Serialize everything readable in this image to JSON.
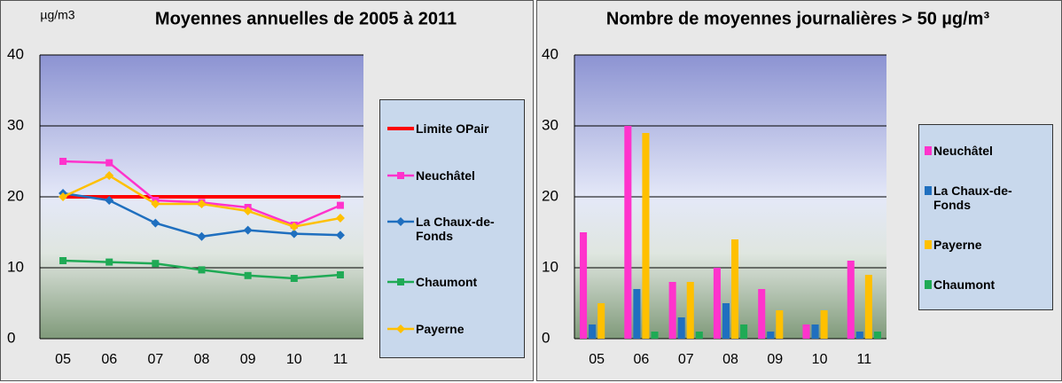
{
  "chart_data": [
    {
      "type": "line",
      "title": "Moyennes annuelles de 2005 à 2011",
      "y_label": "µg/m3",
      "categories": [
        "05",
        "06",
        "07",
        "08",
        "09",
        "10",
        "11"
      ],
      "ylim": [
        0,
        40
      ],
      "yticks": [
        0,
        10,
        20,
        30,
        40
      ],
      "grid": true,
      "series": [
        {
          "name": "Limite OPair",
          "color": "#ff0000",
          "marker": "none",
          "values": [
            20,
            20,
            20,
            20,
            20,
            20,
            20
          ]
        },
        {
          "name": "Neuchâtel",
          "color": "#ff33cc",
          "marker": "square",
          "values": [
            25,
            24.8,
            19.5,
            19.2,
            18.5,
            16,
            18.8
          ]
        },
        {
          "name": "La Chaux-de-Fonds",
          "color": "#1f6fbf",
          "marker": "diamond",
          "values": [
            20.5,
            19.5,
            16.3,
            14.4,
            15.3,
            14.8,
            14.6
          ]
        },
        {
          "name": "Chaumont",
          "color": "#1faa55",
          "marker": "square",
          "values": [
            11,
            10.8,
            10.6,
            9.7,
            8.9,
            8.5,
            9
          ]
        },
        {
          "name": "Payerne",
          "color": "#ffc000",
          "marker": "diamond",
          "values": [
            20,
            23,
            19,
            19,
            18,
            15.8,
            17
          ]
        }
      ]
    },
    {
      "type": "bar",
      "title": "Nombre de moyennes journalières > 50 µg/m³",
      "categories": [
        "05",
        "06",
        "07",
        "08",
        "09",
        "10",
        "11"
      ],
      "ylim": [
        0,
        40
      ],
      "yticks": [
        0,
        10,
        20,
        30,
        40
      ],
      "grid": true,
      "series": [
        {
          "name": "Neuchâtel",
          "color": "#ff33cc",
          "values": [
            15,
            30,
            8,
            10,
            7,
            2,
            11
          ]
        },
        {
          "name": "La Chaux-de-Fonds",
          "color": "#1f6fbf",
          "values": [
            2,
            7,
            3,
            5,
            1,
            2,
            1
          ]
        },
        {
          "name": "Payerne",
          "color": "#ffc000",
          "values": [
            5,
            29,
            8,
            14,
            4,
            4,
            9
          ]
        },
        {
          "name": "Chaumont",
          "color": "#1faa55",
          "values": [
            0,
            1,
            1,
            2,
            0,
            0,
            1
          ]
        }
      ]
    }
  ]
}
